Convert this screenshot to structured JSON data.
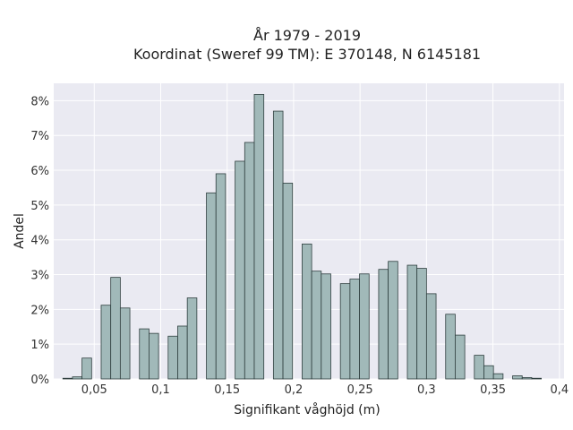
{
  "chart_data": {
    "type": "bar",
    "title_lines": [
      "År 1979 - 2019",
      "Koordinat (Sweref 99 TM): E 370148, N 6145181"
    ],
    "xlabel": "Signifikant våghöjd (m)",
    "ylabel": "Andel",
    "xlim": [
      0.0195,
      0.4035
    ],
    "ylim": [
      0,
      8.5
    ],
    "x_ticks": [
      0.05,
      0.1,
      0.15,
      0.2,
      0.25,
      0.3,
      0.35,
      0.4
    ],
    "x_tick_labels": [
      "0,05",
      "0,1",
      "0,15",
      "0,2",
      "0,25",
      "0,3",
      "0,35",
      "0,4"
    ],
    "y_ticks": [
      0,
      1,
      2,
      3,
      4,
      5,
      6,
      7,
      8
    ],
    "y_tick_labels": [
      "0%",
      "1%",
      "2%",
      "3%",
      "4%",
      "5%",
      "6%",
      "7%",
      "8%"
    ],
    "bin_width": 0.0072,
    "x": [
      0.03,
      0.0372,
      0.0444,
      0.0516,
      0.0588,
      0.066,
      0.0732,
      0.0804,
      0.0876,
      0.0948,
      0.102,
      0.1092,
      0.1164,
      0.1236,
      0.1308,
      0.138,
      0.1452,
      0.1524,
      0.1596,
      0.1668,
      0.174,
      0.1812,
      0.1884,
      0.1956,
      0.2028,
      0.21,
      0.2172,
      0.2244,
      0.2316,
      0.2388,
      0.246,
      0.2532,
      0.2604,
      0.2676,
      0.2748,
      0.282,
      0.2892,
      0.2964,
      0.3036,
      0.3108,
      0.318,
      0.3252,
      0.3324,
      0.3396,
      0.3468,
      0.354,
      0.3612,
      0.3684,
      0.3756,
      0.3828
    ],
    "values": [
      0.02,
      0.06,
      0.6,
      0,
      2.12,
      2.92,
      2.04,
      0,
      1.44,
      1.31,
      0,
      1.23,
      1.52,
      2.33,
      0,
      5.35,
      5.9,
      0,
      6.26,
      6.8,
      8.18,
      0,
      7.7,
      5.63,
      0,
      3.88,
      3.1,
      3.02,
      0,
      2.74,
      2.87,
      3.02,
      0,
      3.15,
      3.38,
      0,
      3.27,
      3.18,
      2.45,
      0,
      1.86,
      1.26,
      0,
      0.68,
      0.38,
      0.15,
      0,
      0.09,
      0.04,
      0.02
    ]
  }
}
